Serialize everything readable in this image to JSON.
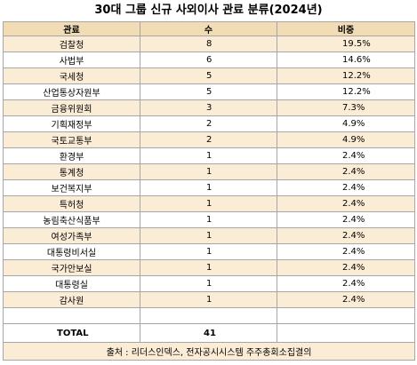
{
  "title": "30대 그룹 신규 사외이사 관료 분류(2024년)",
  "columns": [
    "관료",
    "수",
    "비중"
  ],
  "rows": [
    {
      "name": "검찰청",
      "count": "8",
      "share": "19.5%"
    },
    {
      "name": "사법부",
      "count": "6",
      "share": "14.6%"
    },
    {
      "name": "국세청",
      "count": "5",
      "share": "12.2%"
    },
    {
      "name": "산업통상자원부",
      "count": "5",
      "share": "12.2%"
    },
    {
      "name": "금융위원회",
      "count": "3",
      "share": "7.3%"
    },
    {
      "name": "기획재정부",
      "count": "2",
      "share": "4.9%"
    },
    {
      "name": "국토교통부",
      "count": "2",
      "share": "4.9%"
    },
    {
      "name": "환경부",
      "count": "1",
      "share": "2.4%"
    },
    {
      "name": "통계청",
      "count": "1",
      "share": "2.4%"
    },
    {
      "name": "보건복지부",
      "count": "1",
      "share": "2.4%"
    },
    {
      "name": "특허청",
      "count": "1",
      "share": "2.4%"
    },
    {
      "name": "농림축산식품부",
      "count": "1",
      "share": "2.4%"
    },
    {
      "name": "여성가족부",
      "count": "1",
      "share": "2.4%"
    },
    {
      "name": "대통령비서실",
      "count": "1",
      "share": "2.4%"
    },
    {
      "name": "국가안보실",
      "count": "1",
      "share": "2.4%"
    },
    {
      "name": "대통령실",
      "count": "1",
      "share": "2.4%"
    },
    {
      "name": "감사원",
      "count": "1",
      "share": "2.4%"
    }
  ],
  "total": {
    "label": "TOTAL",
    "count": "41"
  },
  "source": "출처 : 리더스인덱스, 전자공시시스템 주주총회소집결의",
  "colors": {
    "header": "#f2dcb5",
    "tint": "#fbecd6",
    "border": "#a6a6a6"
  }
}
